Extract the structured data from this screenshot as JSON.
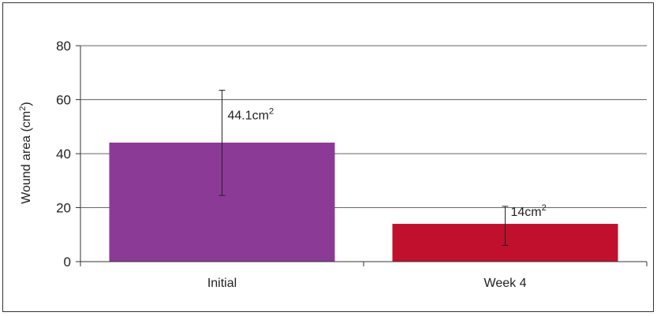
{
  "chart_data": {
    "type": "bar",
    "categories": [
      "Initial",
      "Week 4"
    ],
    "values": [
      44.1,
      14
    ],
    "error_bars": [
      {
        "low": 24.5,
        "high": 63.5
      },
      {
        "low": 6,
        "high": 20.5
      }
    ],
    "data_labels": [
      "44.1cm",
      "14cm"
    ],
    "data_label_superscript": "2",
    "colors": [
      "#8B3A96",
      "#C0102E"
    ],
    "title": "",
    "xlabel": "",
    "ylabel": "Wound area (cm",
    "ylabel_superscript": "2",
    "ylabel_suffix": ")",
    "ylim": [
      0,
      80
    ],
    "yticks": [
      "0",
      "20",
      "40",
      "60",
      "80"
    ],
    "grid": true,
    "legend": "none"
  }
}
